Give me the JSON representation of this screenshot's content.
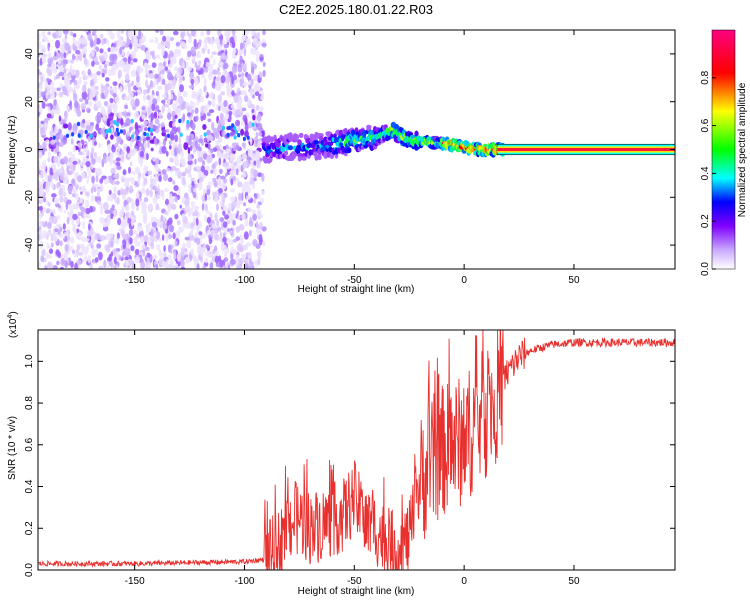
{
  "title": "C2E2.2025.180.01.22.R03",
  "chart_data": [
    {
      "type": "heatmap",
      "xlabel": "Height of straight line (km)",
      "ylabel": "Frequency (Hz)",
      "xlim": [
        -194,
        96
      ],
      "ylim": [
        -50,
        50
      ],
      "xticks": [
        -150,
        -100,
        -50,
        0,
        50
      ],
      "yticks": [
        -40,
        -20,
        0,
        20,
        40
      ],
      "noise_region_x": [
        -194,
        -91
      ],
      "signal_band_x": [
        -91,
        96
      ],
      "ridge": [
        {
          "x": -90,
          "y": 0
        },
        {
          "x": -80,
          "y": 1
        },
        {
          "x": -70,
          "y": 1
        },
        {
          "x": -60,
          "y": 2
        },
        {
          "x": -50,
          "y": 4
        },
        {
          "x": -40,
          "y": 5
        },
        {
          "x": -33,
          "y": 8
        },
        {
          "x": -25,
          "y": 4
        },
        {
          "x": -15,
          "y": 3
        },
        {
          "x": -5,
          "y": 2
        },
        {
          "x": 5,
          "y": 0
        },
        {
          "x": 15,
          "y": 0
        },
        {
          "x": 96,
          "y": 0
        }
      ],
      "colorbar": {
        "label": "Normalized spectral amplitude",
        "range": [
          0,
          1
        ],
        "ticks": [
          "0.0",
          "0.2",
          "0.4",
          "0.6",
          "0.8"
        ],
        "colors": [
          "#ffffff",
          "#8000ff",
          "#0000ff",
          "#00ffff",
          "#00ff00",
          "#ffff00",
          "#ff0000",
          "#ff00ff"
        ]
      }
    },
    {
      "type": "line",
      "xlabel": "Height of straight line (km)",
      "ylabel": "SNR (10 * v/v)",
      "scale_label": "(x10",
      "scale_exp": "4",
      "scale_close": ")",
      "xlim": [
        -194,
        96
      ],
      "ylim": [
        0,
        1.15
      ],
      "xticks": [
        -150,
        -100,
        -50,
        0,
        50
      ],
      "yticks": [
        "0.0",
        "0.2",
        "0.4",
        "0.6",
        "0.8",
        "1.0"
      ],
      "color": "#e8302e",
      "series": [
        {
          "x": [
            -194,
            -150,
            -100,
            -91,
            -85,
            -80,
            -75,
            -70,
            -65,
            -60,
            -55,
            -50,
            -45,
            -40,
            -35,
            -30,
            -25,
            -20,
            -15,
            -10,
            -5,
            0,
            5,
            10,
            15,
            20,
            25,
            30,
            40,
            50,
            60,
            70,
            80,
            96
          ],
          "values": [
            0.03,
            0.03,
            0.04,
            0.05,
            0.1,
            0.22,
            0.25,
            0.2,
            0.22,
            0.24,
            0.26,
            0.35,
            0.22,
            0.2,
            0.12,
            0.1,
            0.15,
            0.42,
            0.52,
            0.57,
            0.6,
            0.62,
            0.7,
            0.75,
            0.84,
            0.95,
            1.02,
            1.05,
            1.08,
            1.09,
            1.09,
            1.09,
            1.09,
            1.09
          ]
        }
      ]
    }
  ]
}
